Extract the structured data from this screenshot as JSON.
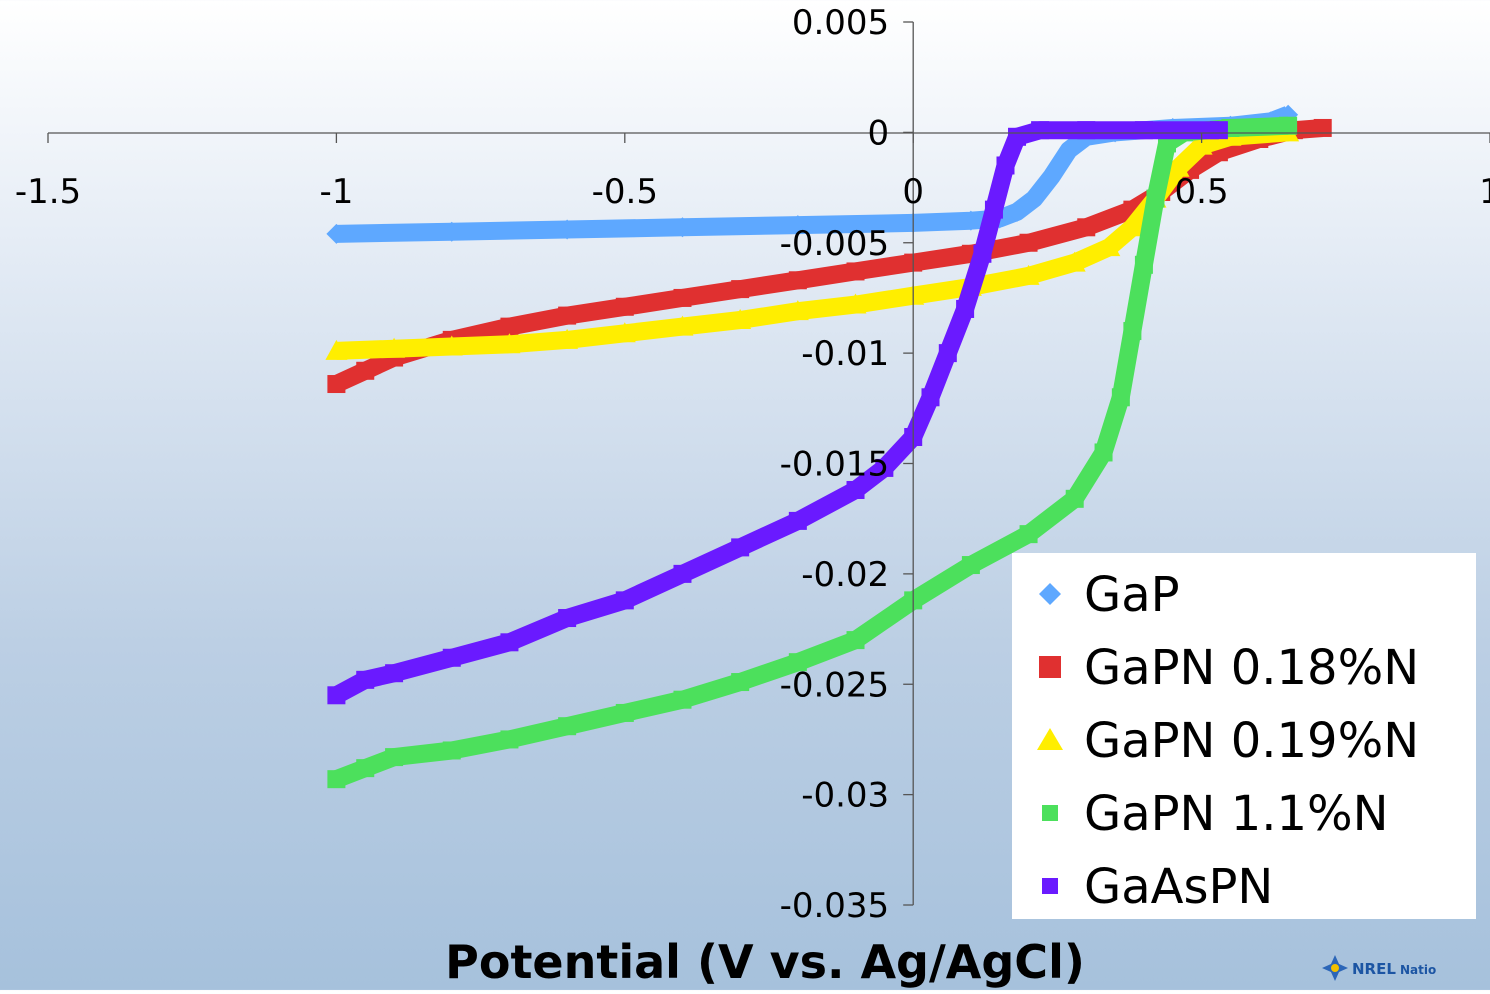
{
  "chart_data": {
    "type": "scatter",
    "xlabel": "Potential (V vs. Ag/AgCl)",
    "ylabel": "",
    "xlim": [
      -1.5,
      1
    ],
    "ylim": [
      -0.035,
      0.005
    ],
    "x_ticks": [
      "-1.5",
      "-1",
      "-0.5",
      "0",
      "0.5",
      "1"
    ],
    "y_ticks": [
      "0.005",
      "0",
      "-0.005",
      "-0.01",
      "-0.015",
      "-0.02",
      "-0.025",
      "-0.03",
      "-0.035"
    ],
    "legend_position": "bottom-right",
    "series": [
      {
        "name": "GaP",
        "color": "#5ea8ff",
        "marker": "diamond",
        "points": [
          [
            -1.0,
            -0.0046
          ],
          [
            -0.8,
            -0.0045
          ],
          [
            -0.6,
            -0.0044
          ],
          [
            -0.4,
            -0.0043
          ],
          [
            -0.2,
            -0.0042
          ],
          [
            0.0,
            -0.0041
          ],
          [
            0.1,
            -0.004
          ],
          [
            0.15,
            -0.0039
          ],
          [
            0.18,
            -0.0036
          ],
          [
            0.21,
            -0.003
          ],
          [
            0.24,
            -0.002
          ],
          [
            0.27,
            -0.0008
          ],
          [
            0.3,
            -0.0002
          ],
          [
            0.35,
            0.0
          ],
          [
            0.45,
            0.0002
          ],
          [
            0.55,
            0.0003
          ],
          [
            0.62,
            0.0005
          ],
          [
            0.65,
            0.0008
          ]
        ]
      },
      {
        "name": "GaPN 0.18%N",
        "color": "#e03030",
        "marker": "square",
        "points": [
          [
            -1.0,
            -0.0114
          ],
          [
            -0.95,
            -0.0108
          ],
          [
            -0.9,
            -0.0102
          ],
          [
            -0.8,
            -0.0094
          ],
          [
            -0.7,
            -0.0088
          ],
          [
            -0.6,
            -0.0083
          ],
          [
            -0.5,
            -0.0079
          ],
          [
            -0.4,
            -0.0075
          ],
          [
            -0.3,
            -0.0071
          ],
          [
            -0.2,
            -0.0067
          ],
          [
            -0.1,
            -0.0063
          ],
          [
            0.0,
            -0.0059
          ],
          [
            0.1,
            -0.0055
          ],
          [
            0.2,
            -0.005
          ],
          [
            0.3,
            -0.0043
          ],
          [
            0.38,
            -0.0035
          ],
          [
            0.43,
            -0.0027
          ],
          [
            0.48,
            -0.0017
          ],
          [
            0.53,
            -0.0009
          ],
          [
            0.6,
            -0.0003
          ],
          [
            0.66,
            0.0001
          ],
          [
            0.71,
            0.0002
          ]
        ]
      },
      {
        "name": "GaPN 0.19%N",
        "color": "#ffee00",
        "marker": "triangle",
        "points": [
          [
            -1.0,
            -0.0099
          ],
          [
            -0.9,
            -0.0098
          ],
          [
            -0.8,
            -0.0097
          ],
          [
            -0.7,
            -0.0096
          ],
          [
            -0.6,
            -0.0094
          ],
          [
            -0.5,
            -0.0091
          ],
          [
            -0.4,
            -0.0088
          ],
          [
            -0.3,
            -0.0085
          ],
          [
            -0.2,
            -0.0081
          ],
          [
            -0.1,
            -0.0078
          ],
          [
            0.0,
            -0.0074
          ],
          [
            0.1,
            -0.007
          ],
          [
            0.2,
            -0.0065
          ],
          [
            0.28,
            -0.0059
          ],
          [
            0.34,
            -0.0052
          ],
          [
            0.38,
            -0.0043
          ],
          [
            0.42,
            -0.003
          ],
          [
            0.46,
            -0.0016
          ],
          [
            0.5,
            -0.0006
          ],
          [
            0.55,
            -0.0002
          ],
          [
            0.65,
            0.0
          ]
        ]
      },
      {
        "name": "GaPN 1.1%N",
        "color": "#4ce05c",
        "marker": "square",
        "points": [
          [
            -1.0,
            -0.0293
          ],
          [
            -0.95,
            -0.0288
          ],
          [
            -0.9,
            -0.0283
          ],
          [
            -0.8,
            -0.028
          ],
          [
            -0.7,
            -0.0275
          ],
          [
            -0.6,
            -0.0269
          ],
          [
            -0.5,
            -0.0263
          ],
          [
            -0.4,
            -0.0257
          ],
          [
            -0.3,
            -0.0249
          ],
          [
            -0.2,
            -0.024
          ],
          [
            -0.1,
            -0.023
          ],
          [
            0.0,
            -0.0212
          ],
          [
            0.1,
            -0.0196
          ],
          [
            0.2,
            -0.0182
          ],
          [
            0.28,
            -0.0166
          ],
          [
            0.33,
            -0.0145
          ],
          [
            0.36,
            -0.012
          ],
          [
            0.38,
            -0.009
          ],
          [
            0.4,
            -0.006
          ],
          [
            0.42,
            -0.003
          ],
          [
            0.44,
            -0.0005
          ],
          [
            0.47,
            0.0
          ],
          [
            0.55,
            0.0002
          ],
          [
            0.65,
            0.0003
          ]
        ]
      },
      {
        "name": "GaAsPN",
        "color": "#6a1aff",
        "marker": "square",
        "points": [
          [
            -1.0,
            -0.0255
          ],
          [
            -0.95,
            -0.0248
          ],
          [
            -0.9,
            -0.0245
          ],
          [
            -0.8,
            -0.0238
          ],
          [
            -0.7,
            -0.0231
          ],
          [
            -0.6,
            -0.022
          ],
          [
            -0.5,
            -0.0212
          ],
          [
            -0.4,
            -0.02
          ],
          [
            -0.3,
            -0.0188
          ],
          [
            -0.2,
            -0.0176
          ],
          [
            -0.1,
            -0.0162
          ],
          [
            -0.05,
            -0.0152
          ],
          [
            0.0,
            -0.0138
          ],
          [
            0.03,
            -0.012
          ],
          [
            0.06,
            -0.01
          ],
          [
            0.09,
            -0.008
          ],
          [
            0.12,
            -0.0055
          ],
          [
            0.14,
            -0.0035
          ],
          [
            0.16,
            -0.0015
          ],
          [
            0.18,
            -0.0002
          ],
          [
            0.22,
            0.0001
          ],
          [
            0.3,
            0.0001
          ],
          [
            0.4,
            0.0001
          ],
          [
            0.53,
            0.0001
          ]
        ]
      }
    ]
  },
  "logo": {
    "text": "NREL",
    "tail": "Natio"
  }
}
